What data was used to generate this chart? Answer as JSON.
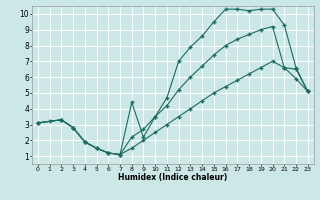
{
  "xlabel": "Humidex (Indice chaleur)",
  "bg_color": "#cce8e6",
  "grid_color": "#ffffff",
  "line_color": "#1a6b5e",
  "xlim": [
    -0.5,
    23.5
  ],
  "ylim": [
    0.5,
    10.5
  ],
  "xticks": [
    0,
    1,
    2,
    3,
    4,
    5,
    6,
    7,
    8,
    9,
    10,
    11,
    12,
    13,
    14,
    15,
    16,
    17,
    18,
    19,
    20,
    21,
    22,
    23
  ],
  "yticks": [
    1,
    2,
    3,
    4,
    5,
    6,
    7,
    8,
    9,
    10
  ],
  "line1_x": [
    0,
    1,
    2,
    3,
    4,
    5,
    6,
    7,
    8,
    9,
    10,
    11,
    12,
    13,
    14,
    15,
    16,
    17,
    18,
    19,
    20,
    21,
    22,
    23
  ],
  "line1_y": [
    3.1,
    3.2,
    3.3,
    2.8,
    1.9,
    1.5,
    1.2,
    1.1,
    4.4,
    2.2,
    3.5,
    4.7,
    7.0,
    7.9,
    8.6,
    9.5,
    10.3,
    10.3,
    10.2,
    10.3,
    10.3,
    9.3,
    6.6,
    5.1
  ],
  "line2_x": [
    0,
    2,
    3,
    4,
    5,
    6,
    7,
    8,
    9,
    10,
    11,
    12,
    13,
    14,
    15,
    16,
    17,
    18,
    19,
    20,
    21,
    22,
    23
  ],
  "line2_y": [
    3.1,
    3.3,
    2.8,
    1.9,
    1.5,
    1.2,
    1.1,
    2.2,
    2.7,
    3.5,
    4.2,
    5.2,
    6.0,
    6.7,
    7.4,
    8.0,
    8.4,
    8.7,
    9.0,
    9.2,
    6.6,
    6.5,
    5.1
  ],
  "line3_x": [
    0,
    2,
    3,
    4,
    5,
    6,
    7,
    8,
    9,
    10,
    11,
    12,
    13,
    14,
    15,
    16,
    17,
    18,
    19,
    20,
    21,
    22,
    23
  ],
  "line3_y": [
    3.1,
    3.3,
    2.8,
    1.9,
    1.5,
    1.2,
    1.1,
    1.5,
    2.0,
    2.5,
    3.0,
    3.5,
    4.0,
    4.5,
    5.0,
    5.4,
    5.8,
    6.2,
    6.6,
    7.0,
    6.6,
    5.9,
    5.1
  ]
}
